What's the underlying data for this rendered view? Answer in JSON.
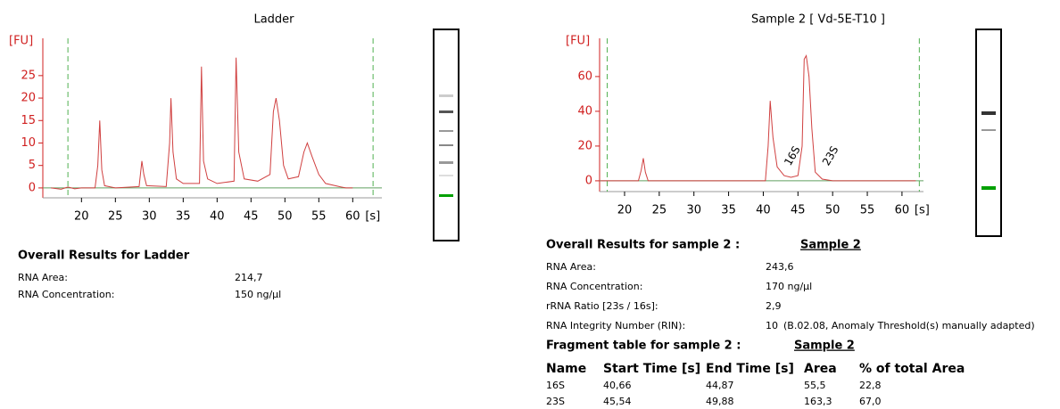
{
  "chart_data": [
    {
      "type": "line",
      "title": "Ladder",
      "y_label": "[FU]",
      "x_label": "[s]",
      "xlim": [
        14.3,
        64.3
      ],
      "ylim": [
        -2.2,
        33.3
      ],
      "xticks": [
        20,
        25,
        30,
        35,
        40,
        45,
        50,
        55,
        60
      ],
      "yticks": [
        0,
        5,
        10,
        15,
        20,
        25
      ],
      "marker_x": [
        18,
        63
      ],
      "series": [
        {
          "color": "#d04040",
          "x": [
            15.5,
            17,
            18,
            19,
            20,
            22,
            22.4,
            22.7,
            23,
            23.4,
            25,
            28.5,
            28.9,
            29.2,
            29.6,
            32.5,
            33,
            33.2,
            33.5,
            34,
            35,
            37.4,
            37.7,
            38,
            38.6,
            40,
            42.5,
            42.8,
            43.2,
            44,
            46,
            47.8,
            48.3,
            48.7,
            49.2,
            49.8,
            50.5,
            52,
            52.8,
            53.3,
            54,
            55,
            56,
            58,
            59,
            60
          ],
          "values": [
            0,
            -0.3,
            0.2,
            -0.2,
            0,
            0,
            5,
            15,
            4,
            0.5,
            0,
            0.3,
            6,
            3,
            0.5,
            0.3,
            10,
            20,
            8,
            2,
            1,
            1,
            27,
            6,
            2,
            1,
            1.5,
            29,
            8,
            2,
            1.5,
            3,
            17,
            20,
            15,
            5,
            2,
            2.5,
            8,
            10,
            7,
            3,
            1,
            0.3,
            0,
            0
          ]
        }
      ]
    },
    {
      "type": "line",
      "title": "Sample 2  [ Vd-5E-T10 ]",
      "y_label": "[FU]",
      "x_label": "[s]",
      "xlim": [
        16.4,
        63.1
      ],
      "ylim": [
        -6.2,
        82
      ],
      "xticks": [
        20,
        25,
        30,
        35,
        40,
        45,
        50,
        55,
        60
      ],
      "yticks": [
        0,
        20,
        40,
        60
      ],
      "marker_x": [
        17.5,
        62.5
      ],
      "annotations": [
        {
          "text": "16S",
          "x": 43.5,
          "y": 3,
          "color": "#e040e0"
        },
        {
          "text": "23S",
          "x": 49,
          "y": 3,
          "color": "#309090"
        }
      ],
      "series": [
        {
          "color": "#d04040",
          "x": [
            16.5,
            22,
            22.4,
            22.7,
            23,
            23.4,
            40.3,
            40.7,
            41,
            41.4,
            42,
            43,
            44,
            45,
            45.6,
            45.9,
            46.2,
            46.6,
            47,
            47.5,
            48.5,
            50,
            53,
            62
          ],
          "values": [
            0,
            0,
            6,
            13,
            5,
            0,
            0,
            20,
            46,
            25,
            8,
            3,
            2,
            3,
            20,
            70,
            72,
            60,
            30,
            5,
            1,
            0,
            0,
            0
          ]
        }
      ]
    }
  ],
  "ladder_results": {
    "title": "Overall Results for Ladder",
    "rows": [
      [
        "RNA Area:",
        "214,7"
      ],
      [
        "RNA Concentration:",
        "150 ng/µl"
      ]
    ]
  },
  "sample_results": {
    "title": "Overall Results for sample 2 :",
    "sample": "Sample 2",
    "rows": [
      [
        "RNA Area:",
        "243,6"
      ],
      [
        "RNA Concentration:",
        "170 ng/µl"
      ],
      [
        "rRNA Ratio [23s / 16s]:",
        "2,9"
      ],
      [
        "RNA Integrity Number (RIN):",
        "10",
        "(B.02.08, Anomaly Threshold(s) manually adapted)"
      ]
    ]
  },
  "fragment_table": {
    "title": "Fragment table for sample 2 :",
    "sample": "Sample 2",
    "header": [
      "Name",
      "Start Time [s]",
      "End Time [s]",
      "Area",
      "% of total Area"
    ],
    "rows": [
      [
        "16S",
        "40,66",
        "44,87",
        "55,5",
        "22,8"
      ],
      [
        "23S",
        "45,54",
        "49,88",
        "163,3",
        "67,0"
      ]
    ]
  }
}
